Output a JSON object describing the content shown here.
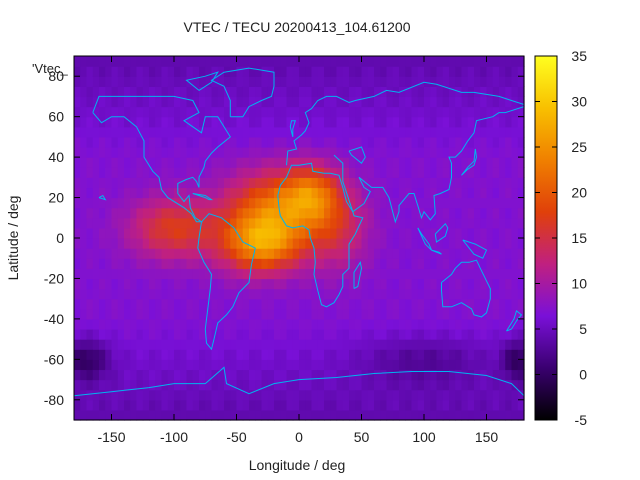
{
  "chart_data": {
    "type": "heatmap",
    "title": "VTEC / TECU 20200413_104.61200",
    "series_label": "'Vtec_",
    "xlabel": "Longitude / deg",
    "ylabel": "Latitude / deg",
    "xlim": [
      -180,
      180
    ],
    "ylim": [
      -90,
      90
    ],
    "xticks": [
      -150,
      -100,
      -50,
      0,
      50,
      100,
      150
    ],
    "yticks": [
      -80,
      -60,
      -40,
      -20,
      0,
      20,
      40,
      60,
      80
    ],
    "colorbar": {
      "range": [
        -5,
        35
      ],
      "ticks": [
        -5,
        0,
        5,
        10,
        15,
        20,
        25,
        30,
        35
      ],
      "palette": [
        "#000000",
        "#3a0070",
        "#7a10d8",
        "#c02080",
        "#e0400a",
        "#f08000",
        "#f8c000",
        "#ffff20"
      ]
    },
    "grid": {
      "lon_step": 5,
      "lat_step": 5,
      "background_vtec": 7,
      "peaks": [
        {
          "lon": -20,
          "lat": 15,
          "vtec": 21,
          "lon_width": 38,
          "lat_width": 18
        },
        {
          "lon": -30,
          "lat": -3,
          "vtec": 23,
          "lon_width": 32,
          "lat_width": 14
        },
        {
          "lon": -100,
          "lat": 5,
          "vtec": 17,
          "lon_width": 35,
          "lat_width": 15
        },
        {
          "lon": 10,
          "lat": 22,
          "vtec": 18,
          "lon_width": 22,
          "lat_width": 14
        },
        {
          "lon": 30,
          "lat": 5,
          "vtec": 14,
          "lon_width": 25,
          "lat_width": 20
        }
      ],
      "lows": [
        {
          "lon": -170,
          "lat": -60,
          "vtec": 1,
          "lon_width": 18,
          "lat_width": 10
        },
        {
          "lon": 175,
          "lat": -60,
          "vtec": 1,
          "lon_width": 12,
          "lat_width": 10
        },
        {
          "lon": 100,
          "lat": -60,
          "vtec": 4,
          "lon_width": 50,
          "lat_width": 12
        }
      ]
    }
  },
  "colors": {
    "coastline": "#00b4f0",
    "frame": "#000000"
  }
}
